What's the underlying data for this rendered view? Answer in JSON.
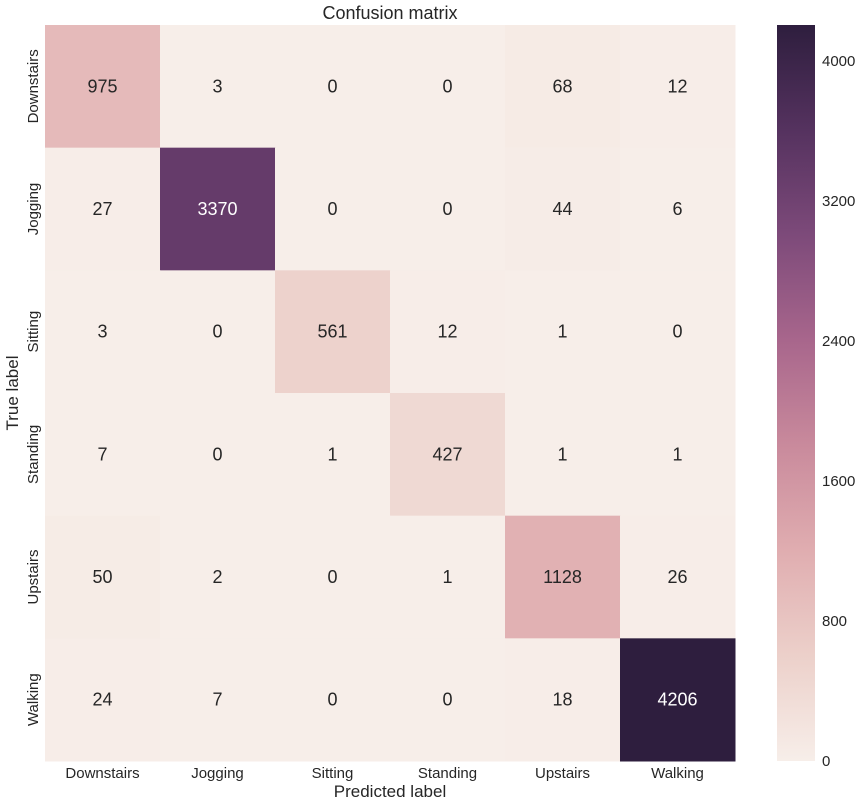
{
  "chart_data": {
    "type": "heatmap",
    "title": "Confusion matrix",
    "xlabel": "Predicted label",
    "ylabel": "True label",
    "x_categories": [
      "Downstairs",
      "Jogging",
      "Sitting",
      "Standing",
      "Upstairs",
      "Walking"
    ],
    "y_categories": [
      "Downstairs",
      "Jogging",
      "Sitting",
      "Standing",
      "Upstairs",
      "Walking"
    ],
    "values": [
      [
        975,
        3,
        0,
        0,
        68,
        12
      ],
      [
        27,
        3370,
        0,
        0,
        44,
        6
      ],
      [
        3,
        0,
        561,
        12,
        1,
        0
      ],
      [
        7,
        0,
        1,
        427,
        1,
        1
      ],
      [
        50,
        2,
        0,
        1,
        1128,
        26
      ],
      [
        24,
        7,
        0,
        0,
        18,
        4206
      ]
    ],
    "colorbar": {
      "range": [
        0,
        4206
      ],
      "ticks": [
        0,
        800,
        1600,
        2400,
        3200,
        4000
      ],
      "colormap_stops": [
        "#f7eee9",
        "#ecd0ca",
        "#e0adb0",
        "#c98a9c",
        "#a8668c",
        "#7d4a7a",
        "#55325f",
        "#2e1e3e"
      ]
    },
    "annotation_colors": {
      "light_background": "#262626",
      "dark_background": "#ffffff"
    },
    "grid": false,
    "legend": "colorbar-right"
  }
}
